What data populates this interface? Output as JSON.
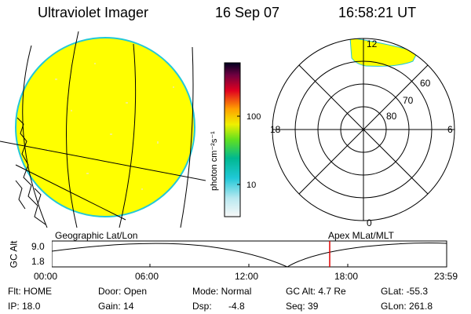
{
  "header": {
    "instrument": "Ultraviolet Imager",
    "date": "16 Sep 07",
    "time": "16:58:21 UT"
  },
  "colorbar": {
    "label": "photon cm⁻²s⁻¹",
    "ticks": [
      "100",
      "10"
    ]
  },
  "polar_plot": {
    "mlt_labels": [
      "12",
      "18",
      "6",
      "0"
    ],
    "lat_labels": [
      "60",
      "70",
      "80"
    ]
  },
  "timeline": {
    "left_caption": "Geographic Lat/Lon",
    "right_caption": "Apex MLat/MLT",
    "axis_label": "GC Alt",
    "y_labels": [
      "9.0",
      "1.8"
    ],
    "time_ticks": [
      "00:00",
      "06:00",
      "12:00",
      "18:00",
      "23:59"
    ],
    "current_time_marker": "16:58:21"
  },
  "status": {
    "flt": "Flt: HOME",
    "ip": "IP: 18.0",
    "door": "Door: Open",
    "gain": "Gain: 14",
    "mode": "Mode: Normal",
    "dsp_label": "Dsp:",
    "dsp_value": "-4.8",
    "gc_alt": "GC Alt: 4.7 Re",
    "seq": "Seq: 39",
    "glat": "GLat: -55.3",
    "glon": "GLon: 261.8"
  },
  "colors": {
    "background": "#ffffff",
    "aurora_fill": "#ffff00",
    "earth_limb": "#22c8d8",
    "time_marker": "#e00000"
  },
  "icons": {
    "coastline": "coastline-outline",
    "current_time": "red-vertical-marker"
  }
}
